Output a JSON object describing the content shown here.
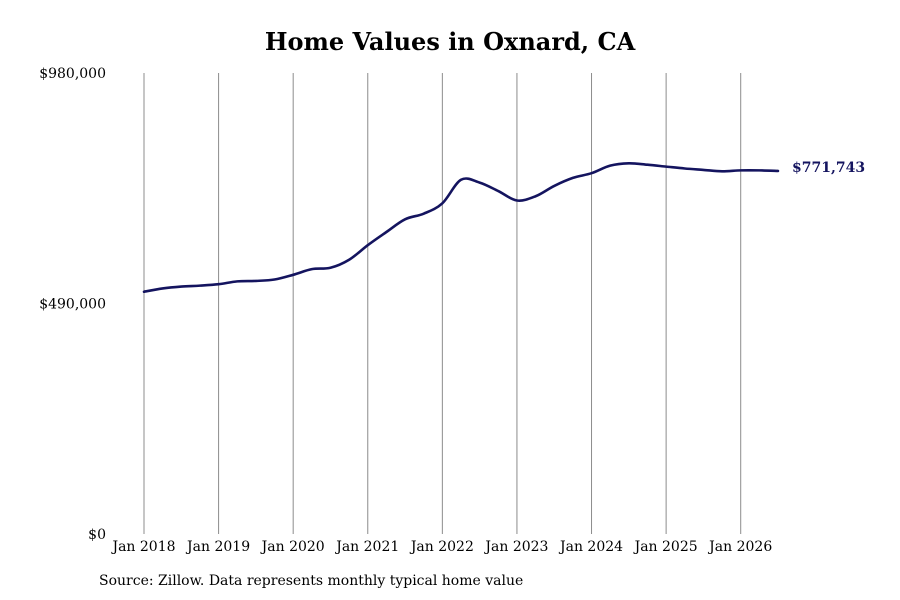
{
  "source_note": "Source: Zillow. Data represents monthly typical home value",
  "chart_data": {
    "type": "line",
    "title": "Home Values in Oxnard, CA",
    "xlabel": "",
    "ylabel": "",
    "ylim": [
      0,
      980000
    ],
    "y_ticks": [
      0,
      490000,
      980000
    ],
    "y_tick_labels": [
      "$0",
      "$490,000",
      "$980,000"
    ],
    "x_ticks": [
      "2018-01",
      "2019-01",
      "2020-01",
      "2021-01",
      "2022-01",
      "2023-01",
      "2024-01",
      "2025-01",
      "2026-01"
    ],
    "x_tick_labels": [
      "Jan 2018",
      "Jan 2019",
      "Jan 2020",
      "Jan 2021",
      "Jan 2022",
      "Jan 2023",
      "Jan 2024",
      "Jan 2025",
      "Jan 2026"
    ],
    "x_range": [
      "2018-01",
      "2026-07"
    ],
    "grid": "vertical",
    "line_color": "#14145f",
    "end_label": "$771,743",
    "series": [
      {
        "x": [
          "2018-01",
          "2018-04",
          "2018-07",
          "2018-10",
          "2019-01",
          "2019-04",
          "2019-07",
          "2019-10",
          "2020-01",
          "2020-04",
          "2020-07",
          "2020-10",
          "2021-01",
          "2021-04",
          "2021-07",
          "2021-10",
          "2022-01",
          "2022-04",
          "2022-07",
          "2022-10",
          "2023-01",
          "2023-04",
          "2023-07",
          "2023-10",
          "2024-01",
          "2024-04",
          "2024-07",
          "2024-10",
          "2025-01",
          "2025-04",
          "2025-07",
          "2025-10",
          "2026-01",
          "2026-04",
          "2026-07"
        ],
        "values": [
          515000,
          522000,
          526000,
          528000,
          531000,
          537000,
          538000,
          541000,
          551000,
          563000,
          566000,
          583000,
          614000,
          642000,
          669000,
          681000,
          703000,
          753000,
          747000,
          729000,
          709000,
          718000,
          740000,
          757000,
          767000,
          783000,
          788000,
          785000,
          781000,
          777000,
          774000,
          771000,
          773000,
          773000,
          771743
        ]
      }
    ]
  }
}
